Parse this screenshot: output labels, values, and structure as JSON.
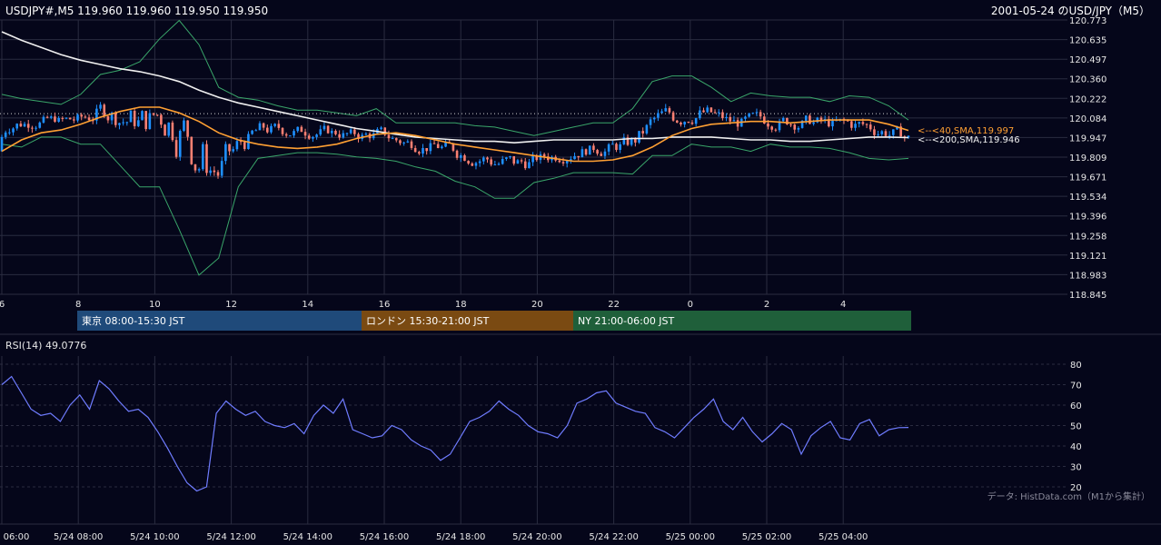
{
  "header": {
    "symbol_info": "USDJPY#,M5 119.960 119.960 119.950 119.950",
    "title": "2001-05-24 のUSD/JPY（M5）"
  },
  "colors": {
    "background": "#05061a",
    "grid": "#2a2c40",
    "bull": "#1e90ff",
    "bear": "#fa8072",
    "bollinger": "#3aa66a",
    "sma40": "#ffa033",
    "sma200": "#f0f0f0",
    "rsi": "#6f7cff",
    "session_tokyo": "#1f4a7a",
    "session_london": "#7a4a12",
    "session_ny": "#1f5f3a"
  },
  "sessions": [
    {
      "label": "東京 08:00-15:30 JST"
    },
    {
      "label": "ロンドン 15:30-21:00 JST"
    },
    {
      "label": "NY 21:00-06:00 JST"
    }
  ],
  "sma_labels": {
    "sma40": "<--<40,SMA,119.997",
    "sma200": "<--<200,SMA,119.946"
  },
  "rsi_label": "RSI(14) 49.0776",
  "credit": "データ: HistData.com（M1から集計）",
  "chart_data": [
    {
      "type": "candlestick",
      "title": "2001-05-24 のUSD/JPY（M5）",
      "ylim": [
        118.845,
        120.773
      ],
      "y_ticks": [
        120.773,
        120.635,
        120.497,
        120.36,
        120.222,
        120.084,
        119.947,
        119.809,
        119.671,
        119.534,
        119.396,
        119.258,
        119.121,
        118.983,
        118.845
      ],
      "x_ticks": [
        "6",
        "8",
        "10",
        "12",
        "14",
        "16",
        "18",
        "20",
        "22",
        "0",
        "2",
        "4"
      ],
      "reference_line": 120.115,
      "series": [
        {
          "name": "40,SMA",
          "last": 119.997,
          "values": [
            119.85,
            119.93,
            119.98,
            120.0,
            120.04,
            120.09,
            120.13,
            120.16,
            120.16,
            120.12,
            120.06,
            119.98,
            119.93,
            119.9,
            119.88,
            119.87,
            119.88,
            119.9,
            119.94,
            119.97,
            119.98,
            119.96,
            119.93,
            119.9,
            119.88,
            119.86,
            119.84,
            119.82,
            119.8,
            119.78,
            119.78,
            119.79,
            119.82,
            119.88,
            119.96,
            120.01,
            120.04,
            120.05,
            120.06,
            120.06,
            120.05,
            120.06,
            120.07,
            120.07,
            120.07,
            120.04,
            119.997
          ]
        },
        {
          "name": "200,SMA",
          "last": 119.946,
          "values": [
            120.69,
            120.63,
            120.58,
            120.53,
            120.49,
            120.46,
            120.43,
            120.41,
            120.38,
            120.34,
            120.28,
            120.23,
            120.19,
            120.16,
            120.13,
            120.1,
            120.07,
            120.04,
            120.01,
            119.99,
            119.97,
            119.95,
            119.94,
            119.93,
            119.92,
            119.92,
            119.91,
            119.92,
            119.93,
            119.93,
            119.93,
            119.93,
            119.94,
            119.94,
            119.95,
            119.95,
            119.95,
            119.94,
            119.93,
            119.93,
            119.92,
            119.92,
            119.93,
            119.94,
            119.95,
            119.95,
            119.946
          ]
        }
      ],
      "bollinger_upper": [
        120.25,
        120.22,
        120.2,
        120.18,
        120.25,
        120.39,
        120.42,
        120.48,
        120.64,
        120.77,
        120.6,
        120.3,
        120.23,
        120.21,
        120.17,
        120.14,
        120.14,
        120.12,
        120.1,
        120.15,
        120.05,
        120.05,
        120.05,
        120.05,
        120.03,
        120.02,
        119.99,
        119.96,
        119.99,
        120.02,
        120.05,
        120.05,
        120.15,
        120.34,
        120.38,
        120.38,
        120.3,
        120.2,
        120.26,
        120.24,
        120.23,
        120.23,
        120.2,
        120.24,
        120.23,
        120.17,
        120.07
      ],
      "bollinger_lower": [
        119.9,
        119.88,
        119.95,
        119.95,
        119.9,
        119.9,
        119.75,
        119.6,
        119.6,
        119.3,
        118.98,
        119.1,
        119.6,
        119.8,
        119.82,
        119.84,
        119.84,
        119.83,
        119.81,
        119.8,
        119.78,
        119.74,
        119.71,
        119.64,
        119.6,
        119.52,
        119.52,
        119.63,
        119.66,
        119.7,
        119.7,
        119.7,
        119.69,
        119.82,
        119.82,
        119.9,
        119.88,
        119.88,
        119.85,
        119.9,
        119.88,
        119.88,
        119.87,
        119.84,
        119.8,
        119.79,
        119.8
      ]
    },
    {
      "type": "line",
      "name": "RSI(14)",
      "last": 49.0776,
      "ylim": [
        16,
        84
      ],
      "y_ticks": [
        80,
        70,
        60,
        50,
        40,
        30,
        20
      ],
      "x_ticks": [
        "06:00",
        "5/24 08:00",
        "5/24 10:00",
        "5/24 12:00",
        "5/24 14:00",
        "5/24 16:00",
        "5/24 18:00",
        "5/24 20:00",
        "5/24 22:00",
        "5/25 00:00",
        "5/25 02:00",
        "5/25 04:00"
      ],
      "values": [
        70,
        74,
        66,
        58,
        55,
        56,
        52,
        60,
        65,
        58,
        72,
        68,
        62,
        57,
        58,
        54,
        47,
        39,
        30,
        22,
        18,
        20,
        56,
        62,
        58,
        55,
        57,
        52,
        50,
        49,
        51,
        46,
        55,
        60,
        56,
        63,
        48,
        46,
        44,
        45,
        50,
        48,
        43,
        40,
        38,
        33,
        36,
        44,
        52,
        54,
        57,
        62,
        58,
        55,
        50,
        47,
        46,
        44,
        50,
        61,
        63,
        66,
        67,
        61,
        59,
        57,
        56,
        49,
        47,
        44,
        49,
        54,
        58,
        63,
        52,
        48,
        54,
        47,
        42,
        46,
        51,
        48,
        36,
        45,
        49,
        52,
        44,
        43,
        51,
        53,
        45,
        48,
        49,
        49.0776
      ]
    }
  ]
}
